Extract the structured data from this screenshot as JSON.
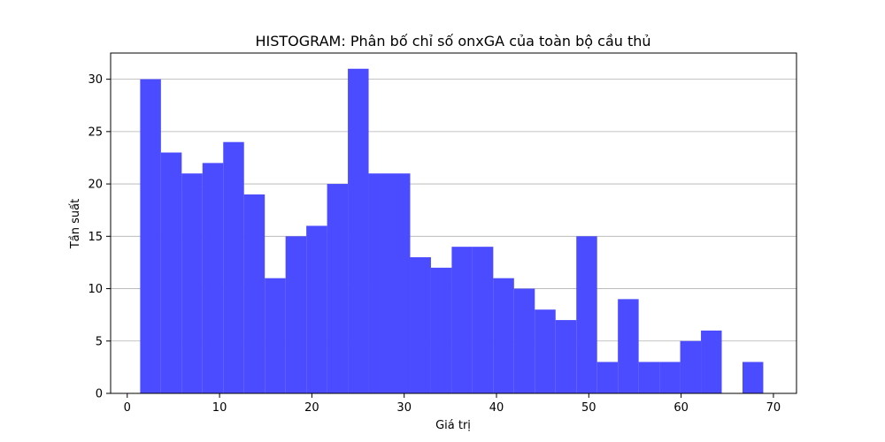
{
  "chart_data": {
    "type": "bar",
    "title": "HISTOGRAM: Phân bố chỉ số onxGA của toàn bộ cầu thủ",
    "xlabel": "Giá trị",
    "ylabel": "Tần suất",
    "xlim": [
      -1.8,
      72.5
    ],
    "ylim": [
      0,
      32.5
    ],
    "xticks": [
      0,
      10,
      20,
      30,
      40,
      50,
      60,
      70
    ],
    "yticks": [
      0,
      5,
      10,
      15,
      20,
      25,
      30
    ],
    "grid": "y",
    "color": "#4b4bff",
    "bins": [
      {
        "x0": 1.4,
        "x1": 3.65,
        "count": 30
      },
      {
        "x0": 3.65,
        "x1": 5.9,
        "count": 23
      },
      {
        "x0": 5.9,
        "x1": 8.15,
        "count": 21
      },
      {
        "x0": 8.15,
        "x1": 10.4,
        "count": 22
      },
      {
        "x0": 10.4,
        "x1": 12.65,
        "count": 24
      },
      {
        "x0": 12.65,
        "x1": 14.9,
        "count": 19
      },
      {
        "x0": 14.9,
        "x1": 17.15,
        "count": 11
      },
      {
        "x0": 17.15,
        "x1": 19.4,
        "count": 15
      },
      {
        "x0": 19.4,
        "x1": 21.65,
        "count": 16
      },
      {
        "x0": 21.65,
        "x1": 23.9,
        "count": 20
      },
      {
        "x0": 23.9,
        "x1": 26.15,
        "count": 31
      },
      {
        "x0": 26.15,
        "x1": 28.4,
        "count": 21
      },
      {
        "x0": 28.4,
        "x1": 30.65,
        "count": 21
      },
      {
        "x0": 30.65,
        "x1": 32.9,
        "count": 13
      },
      {
        "x0": 32.9,
        "x1": 35.15,
        "count": 12
      },
      {
        "x0": 35.15,
        "x1": 37.4,
        "count": 14
      },
      {
        "x0": 37.4,
        "x1": 39.65,
        "count": 14
      },
      {
        "x0": 39.65,
        "x1": 41.9,
        "count": 11
      },
      {
        "x0": 41.9,
        "x1": 44.15,
        "count": 10
      },
      {
        "x0": 44.15,
        "x1": 46.4,
        "count": 8
      },
      {
        "x0": 46.4,
        "x1": 48.65,
        "count": 7
      },
      {
        "x0": 48.65,
        "x1": 50.9,
        "count": 15
      },
      {
        "x0": 50.9,
        "x1": 53.15,
        "count": 3
      },
      {
        "x0": 53.15,
        "x1": 55.4,
        "count": 9
      },
      {
        "x0": 55.4,
        "x1": 57.65,
        "count": 3
      },
      {
        "x0": 57.65,
        "x1": 59.9,
        "count": 3
      },
      {
        "x0": 59.9,
        "x1": 62.15,
        "count": 5
      },
      {
        "x0": 62.15,
        "x1": 64.4,
        "count": 6
      },
      {
        "x0": 64.4,
        "x1": 66.65,
        "count": 0
      },
      {
        "x0": 66.65,
        "x1": 68.9,
        "count": 3
      }
    ]
  }
}
